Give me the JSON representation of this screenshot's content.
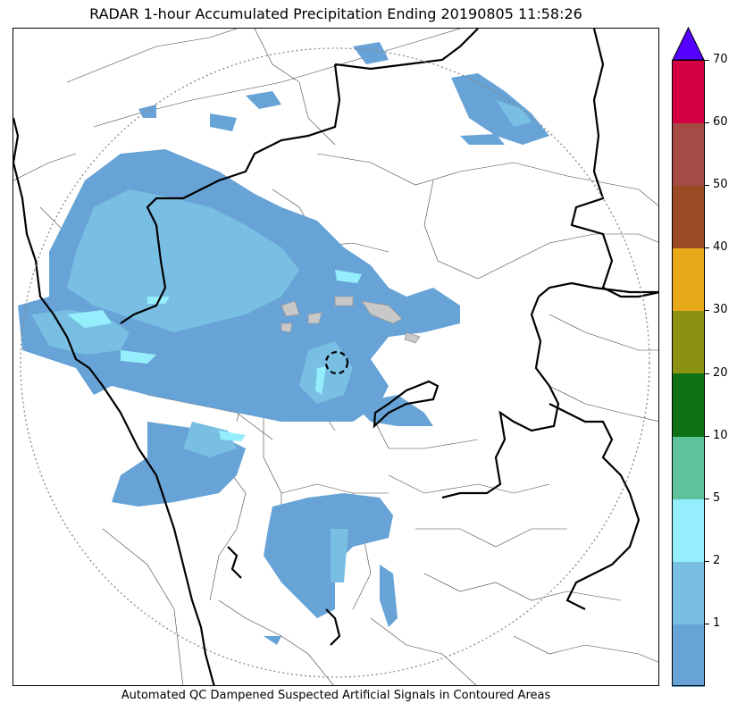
{
  "title": "RADAR 1-hour Accumulated Precipitation Ending 20190805 11:58:26",
  "caption": "Automated QC Dampened Suspected Artificial Signals in Contoured Areas",
  "map": {
    "precip_light_color": "#67a3d6",
    "precip_medium_color": "#79bfe4",
    "precip_heavy_color": "#94eefc",
    "range_ring_color": "#888888",
    "border_color": "#000000",
    "qc_area_color": "#c8c8c8"
  },
  "colorbar": {
    "overflow_color": "#5500ff",
    "segments": [
      {
        "range": "0-1",
        "color": "#67a3d6"
      },
      {
        "range": "1-2",
        "color": "#79bfe4"
      },
      {
        "range": "2-5",
        "color": "#94eefc"
      },
      {
        "range": "5-10",
        "color": "#5ec39a"
      },
      {
        "range": "10-20",
        "color": "#0f7316"
      },
      {
        "range": "20-30",
        "color": "#8b9113"
      },
      {
        "range": "30-40",
        "color": "#e8a919"
      },
      {
        "range": "40-50",
        "color": "#9a4b25"
      },
      {
        "range": "50-60",
        "color": "#a54a45"
      },
      {
        "range": "60-70",
        "color": "#d30044"
      }
    ],
    "tick_labels": [
      "1",
      "2",
      "5",
      "10",
      "20",
      "30",
      "40",
      "50",
      "60",
      "70"
    ]
  }
}
